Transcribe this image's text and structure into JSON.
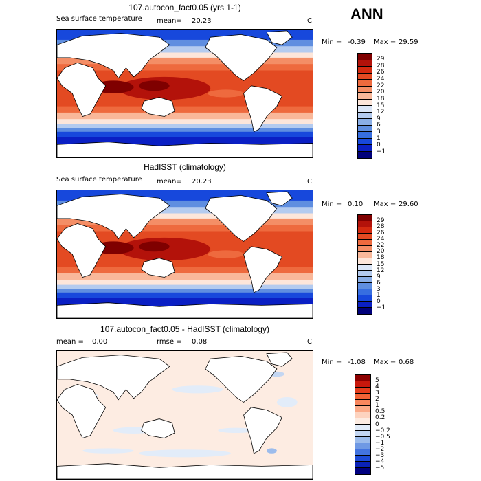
{
  "header": {
    "season": "ANN"
  },
  "panels": [
    {
      "title": "107.autocon_fact0.05 (yrs 1-1)",
      "variable": "Sea surface temperature",
      "mean_label": "mean=",
      "mean_value": "20.23",
      "units": "C",
      "min_label": "Min =",
      "min_value": "-0.39",
      "max_label": "Max =",
      "max_value": "29.59",
      "levels": [
        "29",
        "28",
        "26",
        "24",
        "22",
        "20",
        "18",
        "15",
        "12",
        "9",
        "6",
        "3",
        "1",
        "0",
        "-1"
      ],
      "colors": [
        "#7f0000",
        "#b3120a",
        "#d42a10",
        "#e34a22",
        "#ee6a3e",
        "#f48e66",
        "#f9b89a",
        "#fde6da",
        "#dbe6f7",
        "#b4cbef",
        "#8aaee6",
        "#5f8ee0",
        "#376ee0",
        "#1748dc",
        "#0a1fc4",
        "#00007a"
      ]
    },
    {
      "title": "HadISST (climatology)",
      "variable": "Sea surface temperature",
      "mean_label": "mean=",
      "mean_value": "20.23",
      "units": "C",
      "min_label": "Min =",
      "min_value": "0.10",
      "max_label": "Max =",
      "max_value": "29.60",
      "levels": [
        "29",
        "28",
        "26",
        "24",
        "22",
        "20",
        "18",
        "15",
        "12",
        "9",
        "6",
        "3",
        "1",
        "0",
        "-1"
      ],
      "colors": [
        "#7f0000",
        "#b3120a",
        "#d42a10",
        "#e34a22",
        "#ee6a3e",
        "#f48e66",
        "#f9b89a",
        "#fde6da",
        "#dbe6f7",
        "#b4cbef",
        "#8aaee6",
        "#5f8ee0",
        "#376ee0",
        "#1748dc",
        "#0a1fc4",
        "#00007a"
      ]
    },
    {
      "title": "107.autocon_fact0.05 - HadISST (climatology)",
      "mean_label": "mean =",
      "mean_value": "0.00",
      "rmse_label": "rmse =",
      "rmse_value": "0.08",
      "units": "C",
      "min_label": "Min =",
      "min_value": "-1.08",
      "max_label": "Max =",
      "max_value": "0.68",
      "levels": [
        "5",
        "4",
        "3",
        "2",
        "1",
        "0.5",
        "0.2",
        "0",
        "-0.2",
        "-0.5",
        "-1",
        "-2",
        "-3",
        "-4",
        "-5"
      ],
      "colors": [
        "#8c0000",
        "#c8180c",
        "#e53d1c",
        "#f26336",
        "#f8875e",
        "#fbaa88",
        "#fdd3bf",
        "#fdece2",
        "#e2ecf9",
        "#c3d6f2",
        "#9cbcec",
        "#6f99e4",
        "#4374e0",
        "#1d4bd8",
        "#0a22b8",
        "#000080"
      ]
    }
  ]
}
